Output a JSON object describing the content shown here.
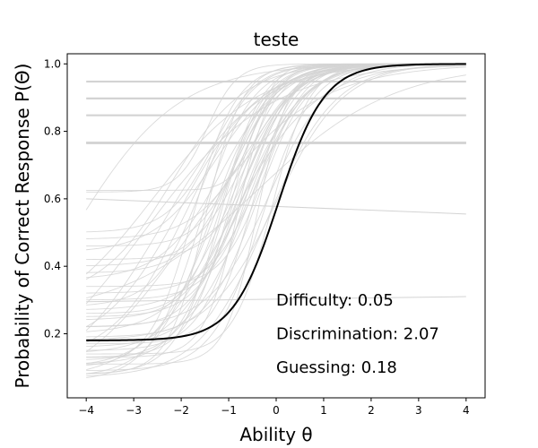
{
  "chart_data": {
    "type": "line",
    "title": "teste",
    "xlabel": "Ability θ",
    "ylabel": "Probability of Correct Response P(Θ)",
    "xlim": [
      -4.4,
      4.4
    ],
    "ylim": [
      0.01,
      1.03
    ],
    "xticks": [
      -4,
      -3,
      -2,
      -1,
      0,
      1,
      2,
      3,
      4
    ],
    "xtick_labels": [
      "−4",
      "−3",
      "−2",
      "−1",
      "0",
      "1",
      "2",
      "3",
      "4"
    ],
    "yticks": [
      0.2,
      0.4,
      0.6,
      0.8,
      1.0
    ],
    "ytick_labels": [
      "0.2",
      "0.4",
      "0.6",
      "0.8",
      "1.0"
    ],
    "grid": false,
    "x_range": [
      -4,
      4
    ],
    "highlight": {
      "difficulty": 0.05,
      "discrimination": 2.07,
      "guessing": 0.18,
      "color": "#000000"
    },
    "background_color": "#d3d3d3",
    "background_items": [
      {
        "a": 1.9,
        "b": -1.6,
        "c": 0.06
      },
      {
        "a": 1.7,
        "b": -1.4,
        "c": 0.07
      },
      {
        "a": 2.2,
        "b": -1.2,
        "c": 0.08
      },
      {
        "a": 1.6,
        "b": -1.3,
        "c": 0.1
      },
      {
        "a": 2.0,
        "b": -1.1,
        "c": 0.11
      },
      {
        "a": 1.8,
        "b": -0.9,
        "c": 0.12
      },
      {
        "a": 2.3,
        "b": -1.0,
        "c": 0.13
      },
      {
        "a": 1.5,
        "b": -0.8,
        "c": 0.14
      },
      {
        "a": 2.1,
        "b": -0.7,
        "c": 0.15
      },
      {
        "a": 1.7,
        "b": -0.6,
        "c": 0.16
      },
      {
        "a": 2.4,
        "b": -0.5,
        "c": 0.17
      },
      {
        "a": 1.9,
        "b": -0.4,
        "c": 0.19
      },
      {
        "a": 1.6,
        "b": -0.95,
        "c": 0.2
      },
      {
        "a": 2.2,
        "b": -0.85,
        "c": 0.22
      },
      {
        "a": 1.8,
        "b": -0.75,
        "c": 0.24
      },
      {
        "a": 2.0,
        "b": -0.65,
        "c": 0.25
      },
      {
        "a": 2.5,
        "b": -1.05,
        "c": 0.26
      },
      {
        "a": 1.7,
        "b": -0.55,
        "c": 0.27
      },
      {
        "a": 2.1,
        "b": -0.45,
        "c": 0.3
      },
      {
        "a": 1.9,
        "b": -0.35,
        "c": 0.32
      },
      {
        "a": 2.3,
        "b": -0.25,
        "c": 0.34
      },
      {
        "a": 1.6,
        "b": -1.15,
        "c": 0.36
      },
      {
        "a": 2.0,
        "b": -0.9,
        "c": 0.38
      },
      {
        "a": 1.8,
        "b": -0.7,
        "c": 0.4
      },
      {
        "a": 2.2,
        "b": -0.5,
        "c": 0.42
      },
      {
        "a": 1.5,
        "b": -1.25,
        "c": 0.44
      },
      {
        "a": 2.4,
        "b": -0.8,
        "c": 0.46
      },
      {
        "a": 1.7,
        "b": -0.6,
        "c": 0.48
      },
      {
        "a": 2.1,
        "b": -1.35,
        "c": 0.5
      },
      {
        "a": 1.9,
        "b": -0.3,
        "c": 0.09
      },
      {
        "a": 2.6,
        "b": -1.5,
        "c": 0.08
      },
      {
        "a": 1.4,
        "b": -0.2,
        "c": 0.07
      },
      {
        "a": 2.2,
        "b": -1.75,
        "c": 0.1
      },
      {
        "a": 1.3,
        "b": -1.9,
        "c": 0.12
      },
      {
        "a": 1.2,
        "b": -2.0,
        "c": 0.15
      },
      {
        "a": 1.0,
        "b": -2.4,
        "c": 0.05
      },
      {
        "a": 3.0,
        "b": -0.4,
        "c": 0.11
      },
      {
        "a": 2.8,
        "b": -0.8,
        "c": 0.13
      },
      {
        "a": 1.1,
        "b": -1.0,
        "c": 0.06
      },
      {
        "a": 1.4,
        "b": 0.0,
        "c": 0.18
      },
      {
        "a": 0.8,
        "b": -1.8,
        "c": 0.0
      },
      {
        "a": 0.9,
        "b": -2.6,
        "c": 0.2
      },
      {
        "a": 0.7,
        "b": -0.4,
        "c": 0.25
      },
      {
        "a": 1.3,
        "b": -2.2,
        "c": 0.3
      },
      {
        "a": 2.0,
        "b": -1.55,
        "c": 0.28
      },
      {
        "a": 1.6,
        "b": -0.15,
        "c": 0.22
      },
      {
        "a": 2.5,
        "b": -0.1,
        "c": 0.14
      },
      {
        "a": 0.75,
        "b": -2.8,
        "c": 0.0
      },
      {
        "a": 3.2,
        "b": -1.45,
        "c": 0.62
      },
      {
        "a": 4.0,
        "b": -0.45,
        "c": 0.625
      },
      {
        "a": 0.9,
        "b": -4.3,
        "c": 0.0
      },
      {
        "a": 0.0,
        "b": 0.0,
        "c": 0.895
      },
      {
        "a": 0.0,
        "b": 0.0,
        "c": 0.795
      },
      {
        "a": 0.0,
        "b": 0.0,
        "c": 0.695
      },
      {
        "a": 0.0,
        "b": 0.0,
        "c": 0.53
      },
      {
        "a": 0.0,
        "b": 0.0,
        "c": 0.531
      },
      {
        "a": 0.0,
        "b": 0.0,
        "c": 0.532
      },
      {
        "a": 0.0,
        "b": 0.0,
        "c": 0.533
      }
    ],
    "background_sloped_lines": [
      {
        "y_at_-4": 0.6,
        "y_at_4": 0.555
      },
      {
        "y_at_-4": 0.295,
        "y_at_4": 0.31
      }
    ],
    "annotations": [
      "Difficulty: 0.05",
      "Discrimination: 2.07",
      "Guessing: 0.18"
    ]
  }
}
